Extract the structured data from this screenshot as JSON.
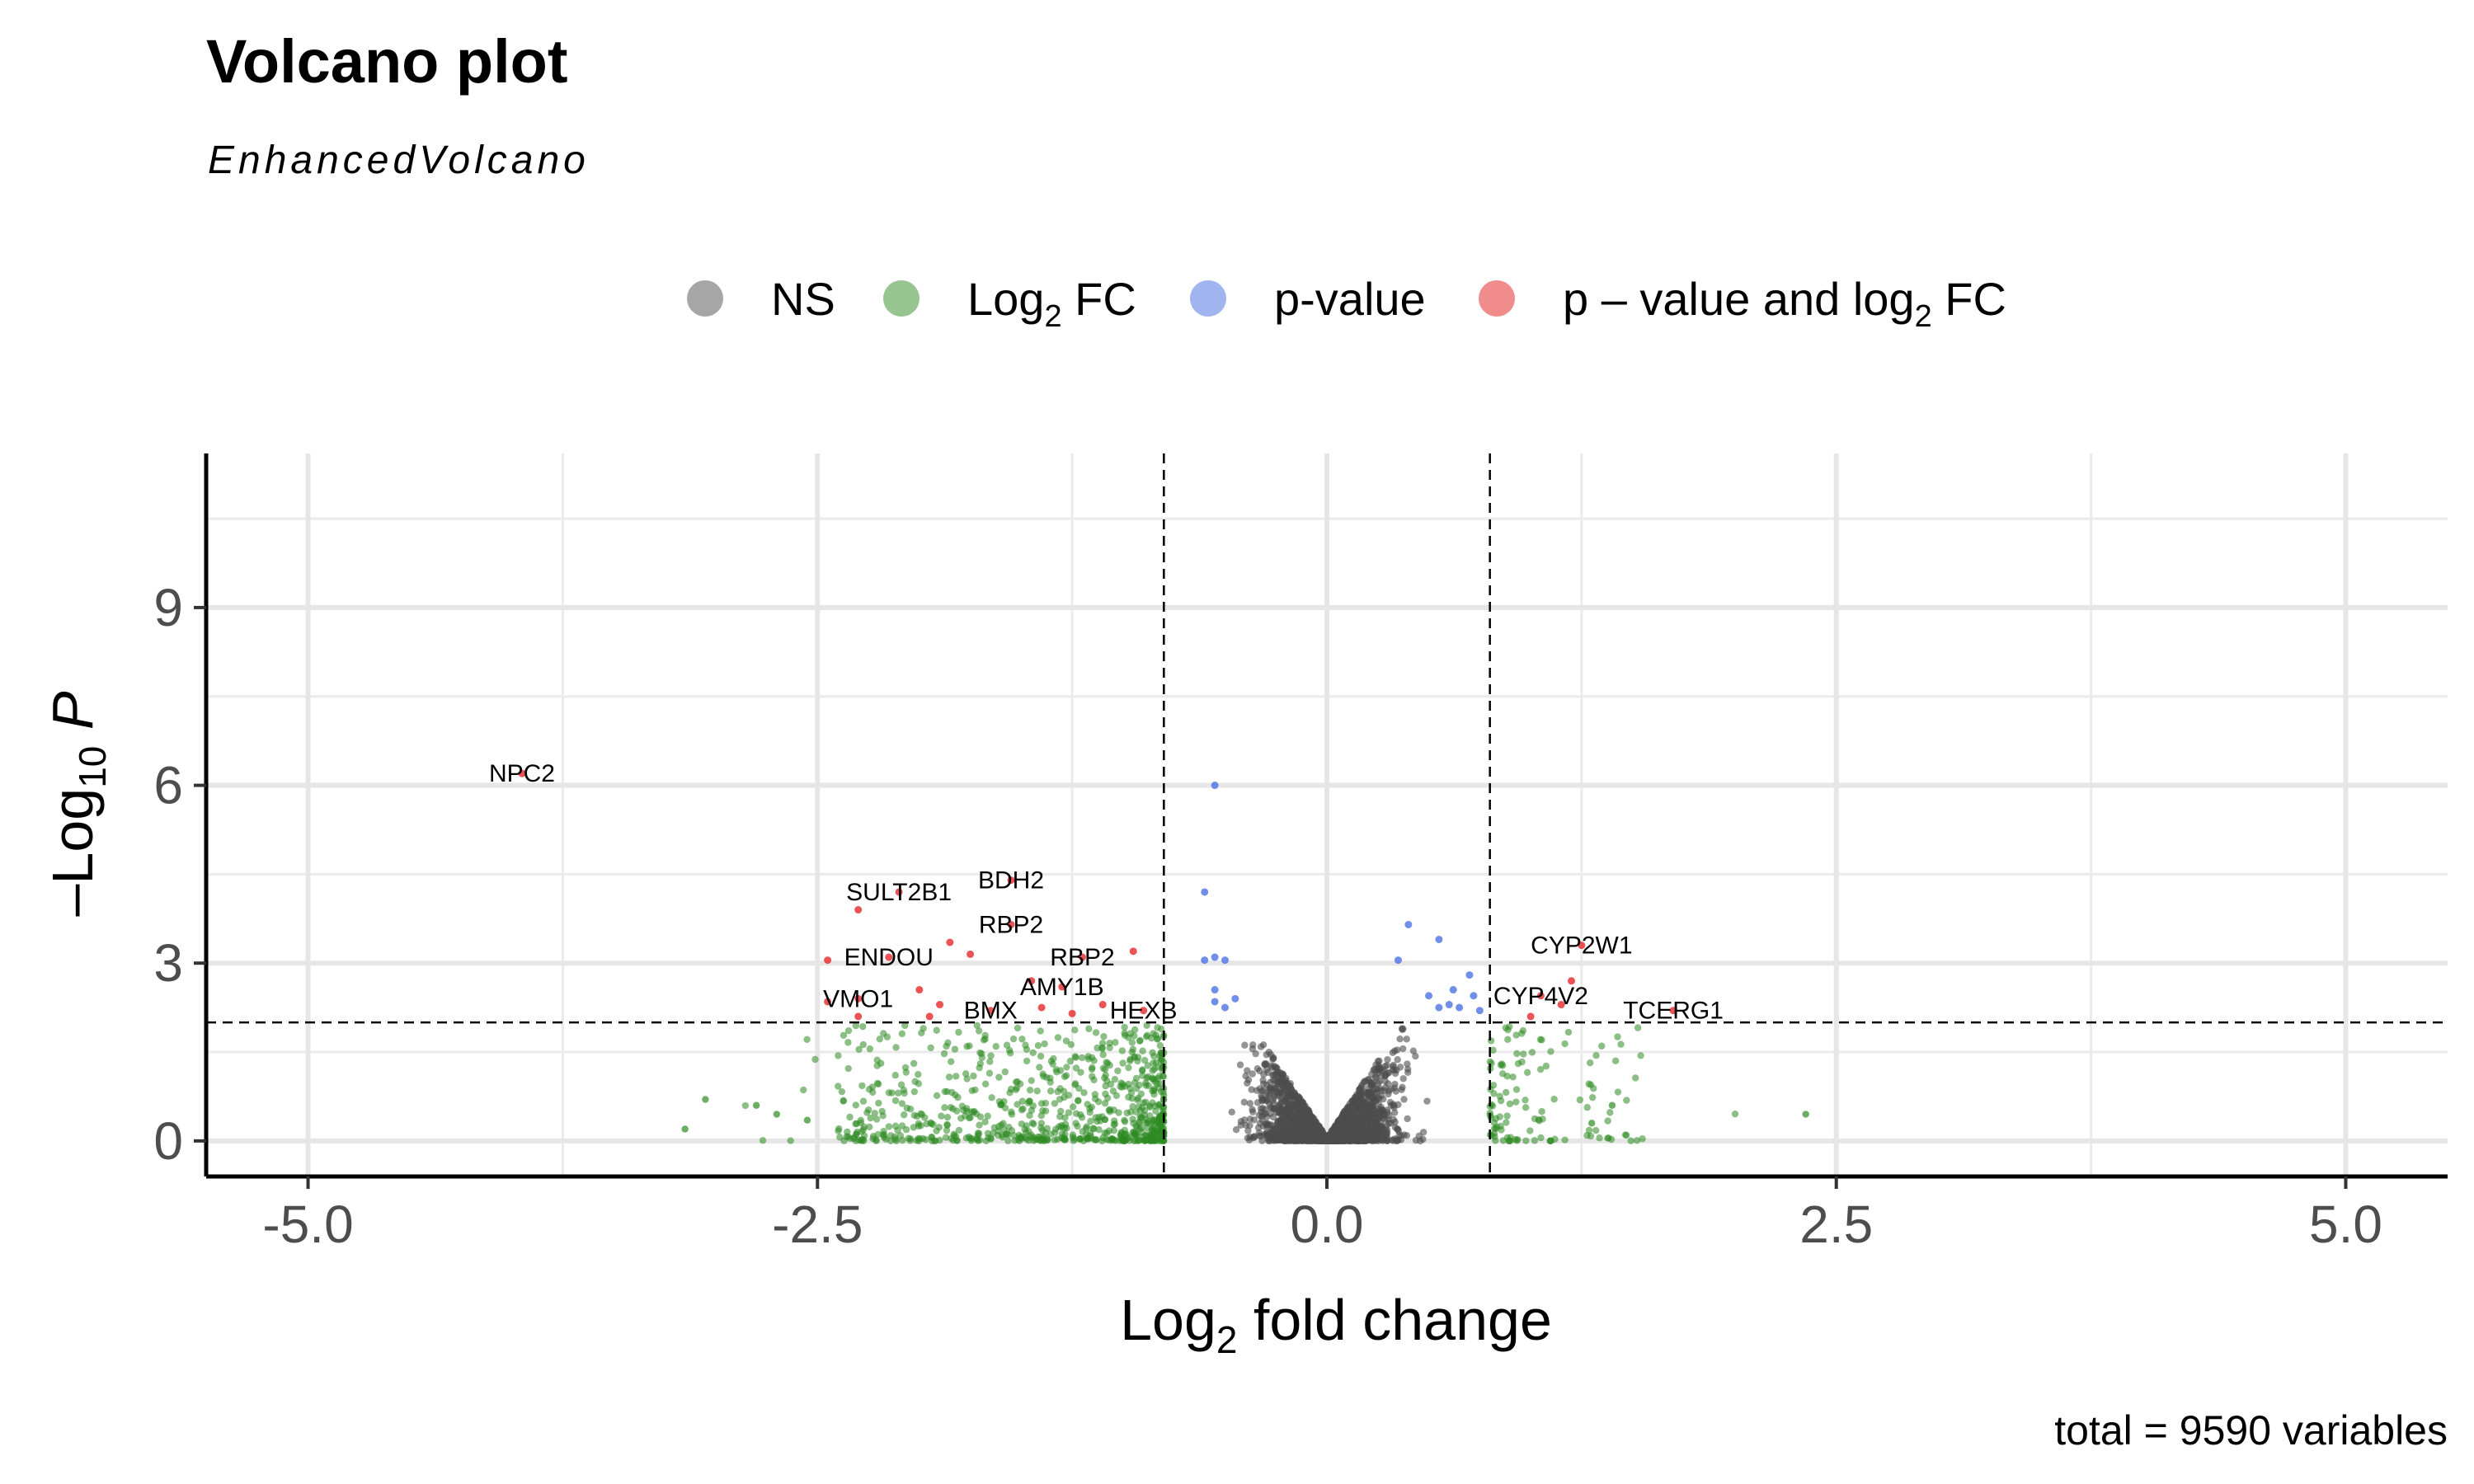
{
  "title": "Volcano plot",
  "subtitle": "EnhancedVolcano",
  "caption": "total = 9590 variables",
  "legend": [
    {
      "key": "NS",
      "label": "NS",
      "color": "#4d4d4d"
    },
    {
      "key": "fc",
      "label_pre": "Log",
      "label_sub": "2",
      "label_post": " FC",
      "color": "#2e8b22"
    },
    {
      "key": "p",
      "label": "p-value",
      "color": "#4169e1"
    },
    {
      "key": "both",
      "label_pre": "p – value and log",
      "label_sub": "2",
      "label_post": " FC",
      "color": "#e41a1c"
    }
  ],
  "chart_data": {
    "type": "scatter",
    "title": "Volcano plot",
    "subtitle": "EnhancedVolcano",
    "xlabel": {
      "pre": "Log",
      "sub": "2",
      "post": " fold change"
    },
    "ylabel": {
      "pre": "–Log",
      "sub": "10",
      "post": " P"
    },
    "xlim": [
      -5.5,
      5.5
    ],
    "ylim": [
      -0.6,
      11.6
    ],
    "xticks": [
      -5.0,
      -2.5,
      0.0,
      2.5,
      5.0
    ],
    "xtick_labels": [
      "-5.0",
      "-2.5",
      "0.0",
      "2.5",
      "5.0"
    ],
    "yticks": [
      0,
      3,
      6,
      9
    ],
    "ytick_labels": [
      "0",
      "3",
      "6",
      "9"
    ],
    "fc_cutoff": 0.8,
    "p_cutoff_log10": 2.0,
    "grid": true,
    "legend_position": "top",
    "total_variables": 9590,
    "labeled_points": [
      {
        "label": "NPC2",
        "x": -3.95,
        "y": 6.2
      },
      {
        "label": "SULT2B1",
        "x": -2.1,
        "y": 4.2
      },
      {
        "label": "BDH2",
        "x": -1.55,
        "y": 4.4
      },
      {
        "label": "RBP2",
        "x": -1.55,
        "y": 3.65
      },
      {
        "label": "ENDOU",
        "x": -2.15,
        "y": 3.1
      },
      {
        "label": "RBP2",
        "x": -1.2,
        "y": 3.1
      },
      {
        "label": "AMY1B",
        "x": -1.3,
        "y": 2.6
      },
      {
        "label": "VMO1",
        "x": -2.3,
        "y": 2.4
      },
      {
        "label": "BMX",
        "x": -1.65,
        "y": 2.2
      },
      {
        "label": "HEXB",
        "x": -0.9,
        "y": 2.2
      },
      {
        "label": "CYP2W1",
        "x": 1.25,
        "y": 3.3
      },
      {
        "label": "CYP4V2",
        "x": 1.05,
        "y": 2.45
      },
      {
        "label": "TCERG1",
        "x": 1.7,
        "y": 2.2
      }
    ],
    "series": [
      {
        "key": "both",
        "points": [
          [
            -3.95,
            6.2
          ],
          [
            -2.1,
            4.2
          ],
          [
            -1.55,
            4.4
          ],
          [
            -1.55,
            3.65
          ],
          [
            -2.3,
            3.9
          ],
          [
            -1.85,
            3.35
          ],
          [
            -1.75,
            3.15
          ],
          [
            -2.45,
            3.05
          ],
          [
            -2.15,
            3.1
          ],
          [
            -1.2,
            3.1
          ],
          [
            -0.95,
            3.2
          ],
          [
            -1.3,
            2.6
          ],
          [
            -1.45,
            2.7
          ],
          [
            -2.3,
            2.4
          ],
          [
            -2.45,
            2.35
          ],
          [
            -2.0,
            2.55
          ],
          [
            -1.9,
            2.3
          ],
          [
            -1.65,
            2.2
          ],
          [
            -1.4,
            2.25
          ],
          [
            -1.25,
            2.15
          ],
          [
            -0.9,
            2.2
          ],
          [
            -1.1,
            2.3
          ],
          [
            -2.3,
            2.1
          ],
          [
            -1.95,
            2.1
          ],
          [
            1.25,
            3.3
          ],
          [
            1.2,
            2.7
          ],
          [
            1.15,
            2.3
          ],
          [
            1.05,
            2.45
          ],
          [
            1.0,
            2.1
          ],
          [
            1.7,
            2.2
          ]
        ]
      },
      {
        "key": "p",
        "points": [
          [
            -0.55,
            6.0
          ],
          [
            -0.6,
            4.2
          ],
          [
            -0.55,
            3.1
          ],
          [
            -0.5,
            3.05
          ],
          [
            -0.6,
            3.05
          ],
          [
            -0.55,
            2.55
          ],
          [
            -0.45,
            2.4
          ],
          [
            -0.5,
            2.25
          ],
          [
            -0.55,
            2.35
          ],
          [
            0.4,
            3.65
          ],
          [
            0.55,
            3.4
          ],
          [
            0.7,
            2.8
          ],
          [
            0.35,
            3.05
          ],
          [
            0.5,
            2.45
          ],
          [
            0.55,
            2.25
          ],
          [
            0.6,
            2.3
          ],
          [
            0.65,
            2.25
          ],
          [
            0.72,
            2.45
          ],
          [
            0.62,
            2.55
          ],
          [
            0.75,
            2.2
          ]
        ]
      }
    ]
  }
}
